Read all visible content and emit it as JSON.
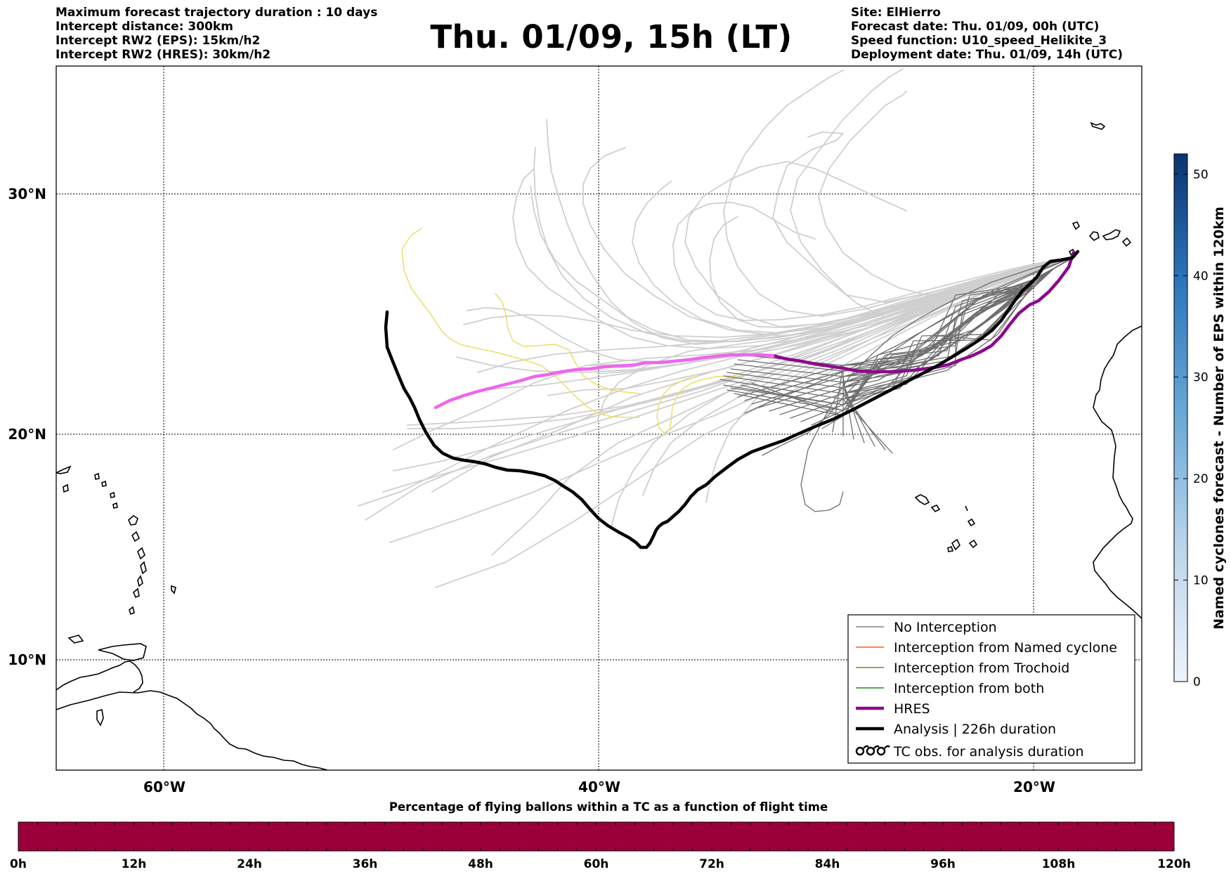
{
  "header": {
    "left_lines": [
      "Maximum forecast trajectory duration : 10 days",
      "Intercept distance: 300km",
      "Intercept RW2 (EPS):  15km/h2",
      "Intercept RW2 (HRES): 30km/h2"
    ],
    "right_lines": [
      "Site: ElHierro",
      "Forecast date: Thu. 01/09, 00h (UTC)",
      "Speed function: U10_speed_Helikite_3",
      "Deployment date: Thu. 01/09, 14h (UTC)"
    ],
    "title": "Thu. 01/09, 15h (LT)"
  },
  "map": {
    "lat_labels": [
      "30°N",
      "20°N",
      "10°N"
    ],
    "lon_labels": [
      "60°W",
      "40°W",
      "20°W"
    ]
  },
  "legend": {
    "entries": [
      {
        "label": "No Interception",
        "color": "#808080",
        "style": "thin-line"
      },
      {
        "label": "Interception from Named cyclone",
        "color": "#ff5a1e",
        "style": "thin-line"
      },
      {
        "label": "Interception from Trochoid",
        "color": "#808018",
        "style": "thin-line"
      },
      {
        "label": "Interception from both",
        "color": "#1e8c1e",
        "style": "thin-line"
      },
      {
        "label": "HRES",
        "color": "#8b0a8b",
        "style": "thick-line"
      },
      {
        "label": "Analysis | 226h duration",
        "color": "#000000",
        "style": "thick-line"
      },
      {
        "label": "TC obs. for analysis duration",
        "color": "#000000",
        "style": "tc-symbols"
      }
    ]
  },
  "colorbar_right": {
    "label": "Named cyclones forecast - Number of EPS within 120km",
    "ticks": [
      "0",
      "10",
      "20",
      "30",
      "40",
      "50"
    ],
    "min": 0,
    "max": 52,
    "color_low": "#e6eff9",
    "color_high": "#0b3a7a"
  },
  "colorbar_bottom": {
    "title": "Percentage of flying ballons within a TC as a function of flight time",
    "ticks": [
      "0h",
      "12h",
      "24h",
      "36h",
      "48h",
      "60h",
      "72h",
      "84h",
      "96h",
      "108h",
      "120h"
    ],
    "fill_color": "#9c003a"
  },
  "colors": {
    "eps_near": "#6e6e6e",
    "eps_far": "#cfcfcf",
    "eps_yellow": "#e8e066",
    "hres": "#8b0a8b",
    "hres_west": "#ee66ee",
    "analysis": "#000000"
  }
}
